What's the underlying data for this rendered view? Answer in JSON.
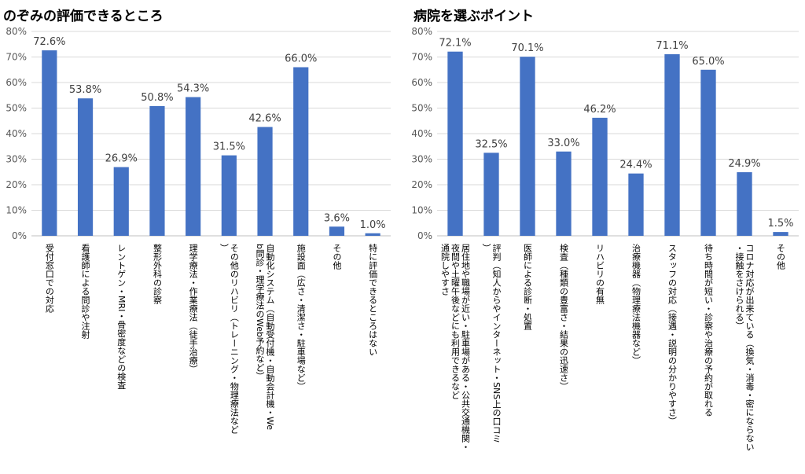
{
  "chart_data": [
    {
      "type": "bar",
      "title": "のぞみの評価できるところ",
      "categories": [
        "受付窓口での対応",
        "看護師による問診や注射",
        "レントゲン・MRI・骨密度などの検査",
        "整形外科の診察",
        "理学療法・作業療法（徒手治療）",
        "その他のリハビリ（トレーニング・物理療法など）",
        "自動化システム（自動受付機・自動会計機・Web問診・理学療法のWeb予約など）",
        "施設面（広さ・清潔さ・駐車場など）",
        "その他",
        "特に評価できるところはない"
      ],
      "values": [
        72.6,
        53.8,
        26.9,
        50.8,
        54.3,
        31.5,
        42.6,
        66.0,
        3.6,
        1.0
      ],
      "data_labels": [
        "72.6%",
        "53.8%",
        "26.9%",
        "50.8%",
        "54.3%",
        "31.5%",
        "42.6%",
        "66.0%",
        "3.6%",
        "1.0%"
      ],
      "y_ticks": [
        "0%",
        "10%",
        "20%",
        "30%",
        "40%",
        "50%",
        "60%",
        "70%",
        "80%"
      ],
      "ylim": [
        0,
        80
      ],
      "grid": true,
      "bar_color": "#4472C4"
    },
    {
      "type": "bar",
      "title": "病院を選ぶポイント",
      "categories": [
        "居住地や職場が近い・駐車場がある・公共交通機関・夜間や土曜午後などにも利用できるなど 通院しやすさ",
        "評判（知人からやインターネット・SNS上の口コミ）",
        "医師による診断・処置",
        "検査（種類の豊富さ・結果の迅速さ）",
        "リハビリの有無",
        "治療機器（物理療法機器など）",
        "スタッフの対応（接遇・説明の分かりやすさ）",
        "待ち時間が短い・診察や治療の予約が取れる",
        "コロナ対応が出来ている（換気・消毒・密にならない・接触をさけられる）",
        "その他"
      ],
      "values": [
        72.1,
        32.5,
        70.1,
        33.0,
        46.2,
        24.4,
        71.1,
        65.0,
        24.9,
        1.5
      ],
      "data_labels": [
        "72.1%",
        "32.5%",
        "70.1%",
        "33.0%",
        "46.2%",
        "24.4%",
        "71.1%",
        "65.0%",
        "24.9%",
        "1.5%"
      ],
      "y_ticks": [
        "0%",
        "10%",
        "20%",
        "30%",
        "40%",
        "50%",
        "60%",
        "70%",
        "80%"
      ],
      "ylim": [
        0,
        80
      ],
      "grid": true,
      "bar_color": "#4472C4"
    }
  ]
}
